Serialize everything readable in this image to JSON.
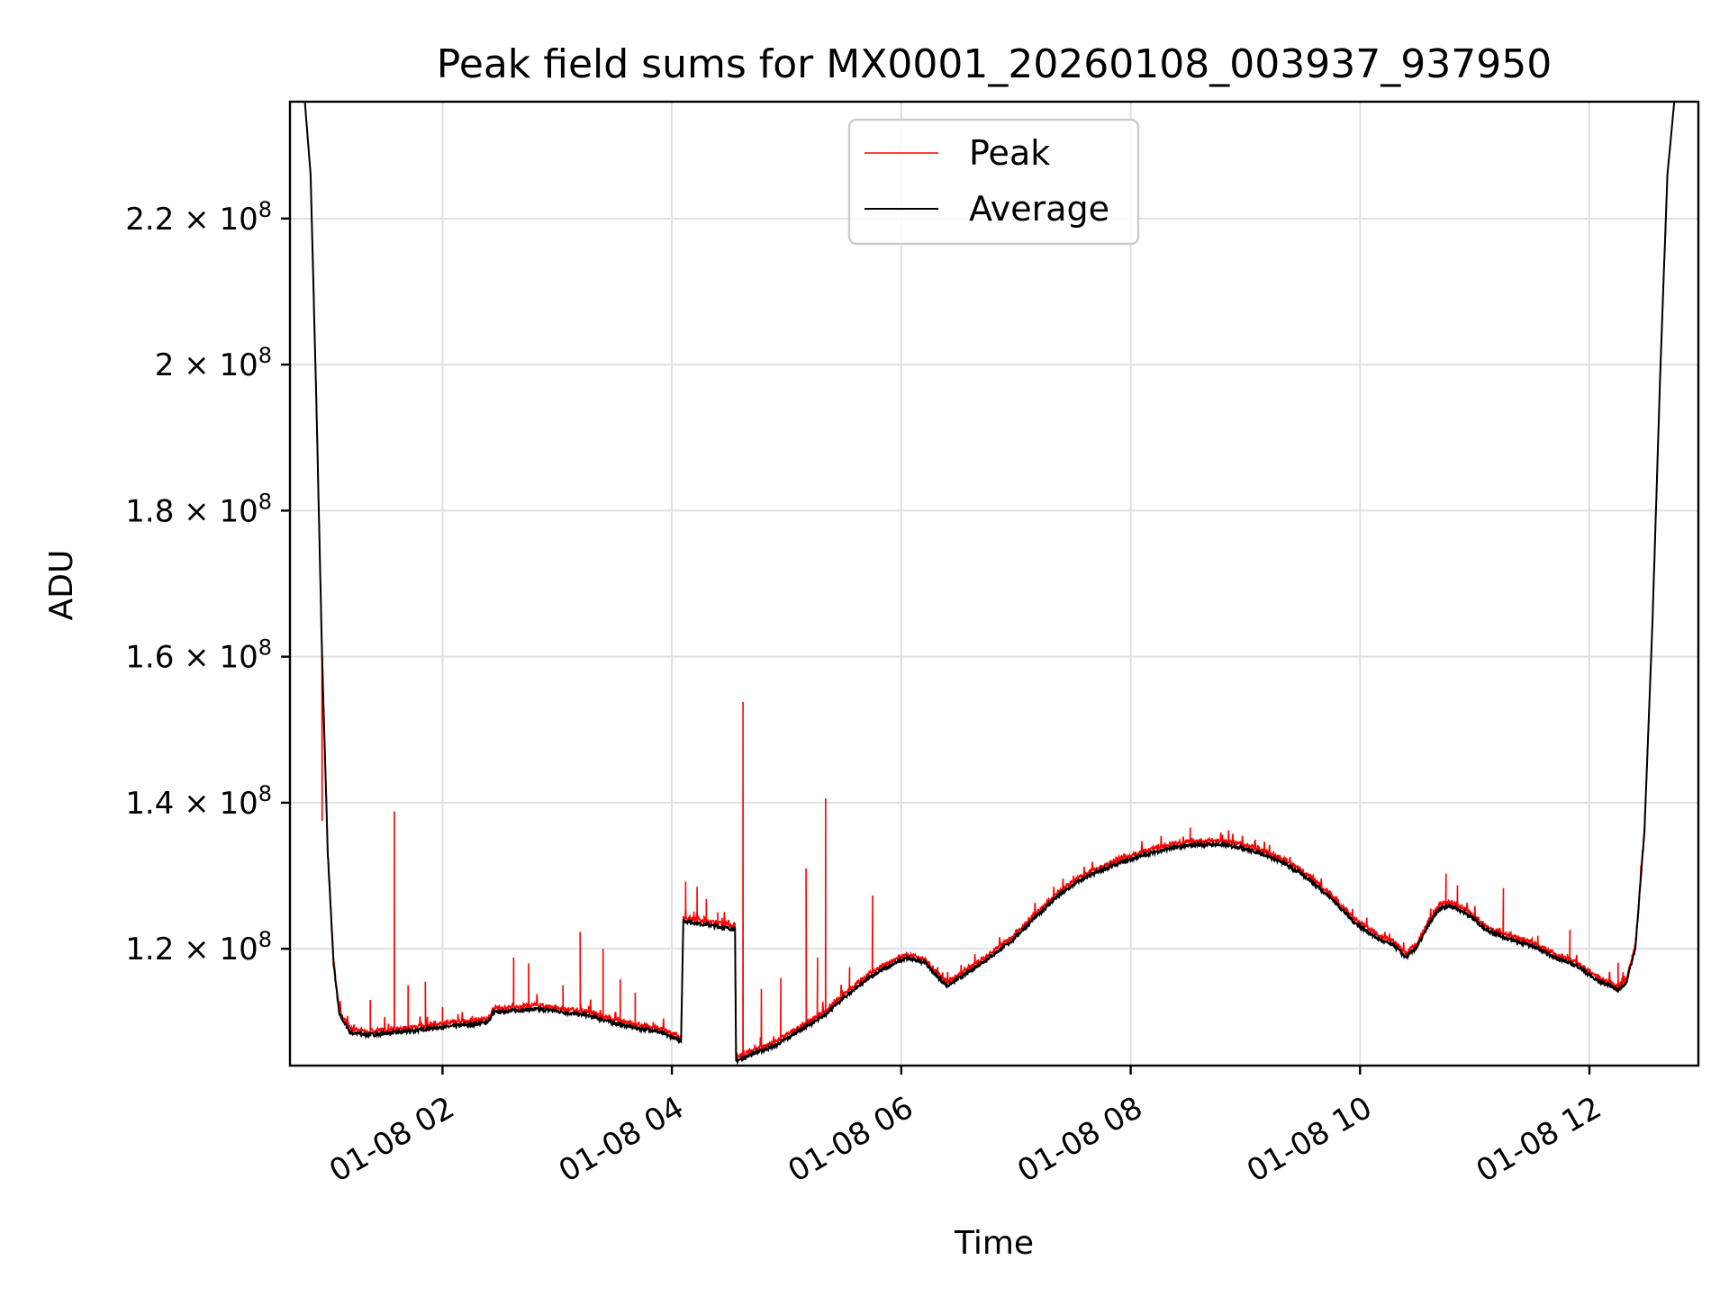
{
  "chart_data": {
    "type": "line",
    "title": "Peak field sums for MX0001_20260108_003937_937950",
    "xlabel": "Time",
    "ylabel": "ADU",
    "x_unit": "hours since 01-08 00:00",
    "xlim": [
      0.67,
      12.95
    ],
    "ylim": [
      104000000,
      236000000
    ],
    "x_ticks": [
      {
        "value": 2,
        "label": "01-08 02"
      },
      {
        "value": 4,
        "label": "01-08 04"
      },
      {
        "value": 6,
        "label": "01-08 06"
      },
      {
        "value": 8,
        "label": "01-08 08"
      },
      {
        "value": 10,
        "label": "01-08 10"
      },
      {
        "value": 12,
        "label": "01-08 12"
      }
    ],
    "y_ticks": [
      {
        "value": 120000000,
        "mantissa": "1.2",
        "base": "10",
        "exponent": "8"
      },
      {
        "value": 140000000,
        "mantissa": "1.4",
        "base": "10",
        "exponent": "8"
      },
      {
        "value": 160000000,
        "mantissa": "1.6",
        "base": "10",
        "exponent": "8"
      },
      {
        "value": 180000000,
        "mantissa": "1.8",
        "base": "10",
        "exponent": "8"
      },
      {
        "value": 200000000,
        "mantissa": "2",
        "base": "10",
        "exponent": "8"
      },
      {
        "value": 220000000,
        "mantissa": "2.2",
        "base": "10",
        "exponent": "8"
      }
    ],
    "grid": true,
    "legend_position": "top-center",
    "series": [
      {
        "name": "Average",
        "color": "#000000",
        "points": [
          [
            0.8,
            236000000
          ],
          [
            0.85,
            226000000
          ],
          [
            0.9,
            195000000
          ],
          [
            0.95,
            160000000
          ],
          [
            1.0,
            133000000
          ],
          [
            1.05,
            118000000
          ],
          [
            1.1,
            111000000
          ],
          [
            1.2,
            108500000
          ],
          [
            1.35,
            108200000
          ],
          [
            1.5,
            108400000
          ],
          [
            1.7,
            108700000
          ],
          [
            1.9,
            109100000
          ],
          [
            2.1,
            109400000
          ],
          [
            2.3,
            109700000
          ],
          [
            2.4,
            110000000
          ],
          [
            2.45,
            111300000
          ],
          [
            2.6,
            111500000
          ],
          [
            2.8,
            111700000
          ],
          [
            2.95,
            111600000
          ],
          [
            3.1,
            111200000
          ],
          [
            3.25,
            110900000
          ],
          [
            3.4,
            110300000
          ],
          [
            3.55,
            109600000
          ],
          [
            3.7,
            109100000
          ],
          [
            3.85,
            108800000
          ],
          [
            4.0,
            107900000
          ],
          [
            4.08,
            107400000
          ],
          [
            4.1,
            123800000
          ],
          [
            4.3,
            123300000
          ],
          [
            4.45,
            122900000
          ],
          [
            4.55,
            122700000
          ],
          [
            4.56,
            104600000
          ],
          [
            4.7,
            105600000
          ],
          [
            4.9,
            106700000
          ],
          [
            5.1,
            108700000
          ],
          [
            5.3,
            110500000
          ],
          [
            5.5,
            113300000
          ],
          [
            5.7,
            115800000
          ],
          [
            5.9,
            117700000
          ],
          [
            6.05,
            118700000
          ],
          [
            6.2,
            118200000
          ],
          [
            6.3,
            116400000
          ],
          [
            6.4,
            114900000
          ],
          [
            6.55,
            116400000
          ],
          [
            6.75,
            118600000
          ],
          [
            6.95,
            120900000
          ],
          [
            7.15,
            124000000
          ],
          [
            7.35,
            127000000
          ],
          [
            7.55,
            129300000
          ],
          [
            7.75,
            130800000
          ],
          [
            7.95,
            132000000
          ],
          [
            8.15,
            133000000
          ],
          [
            8.35,
            133800000
          ],
          [
            8.55,
            134200000
          ],
          [
            8.75,
            134300000
          ],
          [
            8.95,
            133900000
          ],
          [
            9.15,
            133000000
          ],
          [
            9.35,
            131600000
          ],
          [
            9.55,
            129600000
          ],
          [
            9.75,
            126900000
          ],
          [
            9.95,
            123600000
          ],
          [
            10.15,
            121400000
          ],
          [
            10.3,
            120400000
          ],
          [
            10.4,
            118800000
          ],
          [
            10.5,
            120300000
          ],
          [
            10.6,
            123300000
          ],
          [
            10.7,
            125600000
          ],
          [
            10.8,
            125900000
          ],
          [
            10.95,
            124600000
          ],
          [
            11.1,
            122600000
          ],
          [
            11.3,
            121300000
          ],
          [
            11.5,
            120400000
          ],
          [
            11.7,
            118800000
          ],
          [
            11.9,
            117600000
          ],
          [
            12.05,
            115800000
          ],
          [
            12.2,
            114800000
          ],
          [
            12.25,
            114300000
          ],
          [
            12.32,
            115300000
          ],
          [
            12.4,
            120000000
          ],
          [
            12.48,
            136000000
          ],
          [
            12.55,
            165000000
          ],
          [
            12.62,
            200000000
          ],
          [
            12.68,
            226000000
          ],
          [
            12.74,
            236000000
          ]
        ]
      },
      {
        "name": "Peak",
        "color": "#ff0000",
        "spikes": [
          [
            0.95,
            137500000
          ],
          [
            1.37,
            113000000
          ],
          [
            1.58,
            138800000
          ],
          [
            1.7,
            115000000
          ],
          [
            1.85,
            115500000
          ],
          [
            2.0,
            112000000
          ],
          [
            2.62,
            118800000
          ],
          [
            2.75,
            118000000
          ],
          [
            3.05,
            115000000
          ],
          [
            3.2,
            122300000
          ],
          [
            3.4,
            120000000
          ],
          [
            3.55,
            115800000
          ],
          [
            3.68,
            114000000
          ],
          [
            4.12,
            129200000
          ],
          [
            4.22,
            128500000
          ],
          [
            4.3,
            126800000
          ],
          [
            4.4,
            125000000
          ],
          [
            4.62,
            153800000
          ],
          [
            4.78,
            114500000
          ],
          [
            4.95,
            116000000
          ],
          [
            5.17,
            131000000
          ],
          [
            5.27,
            118800000
          ],
          [
            5.34,
            140600000
          ],
          [
            5.55,
            117500000
          ],
          [
            5.75,
            127300000
          ],
          [
            8.52,
            136600000
          ],
          [
            8.8,
            135600000
          ],
          [
            10.75,
            130300000
          ],
          [
            10.85,
            128700000
          ],
          [
            11.25,
            128300000
          ],
          [
            11.55,
            121800000
          ],
          [
            11.83,
            122600000
          ],
          [
            12.25,
            118100000
          ]
        ]
      }
    ]
  }
}
